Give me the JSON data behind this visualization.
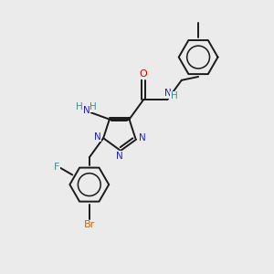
{
  "background_color": "#ebebeb",
  "bond_color": "#1a1a1a",
  "nitrogen_color": "#2020cc",
  "oxygen_color": "#cc0000",
  "fluorine_color": "#3a9090",
  "bromine_color": "#cc6600",
  "nh_color": "#3a9090",
  "figsize": [
    3.0,
    3.0
  ],
  "dpi": 100,
  "xlim": [
    0,
    10
  ],
  "ylim": [
    0,
    10
  ]
}
